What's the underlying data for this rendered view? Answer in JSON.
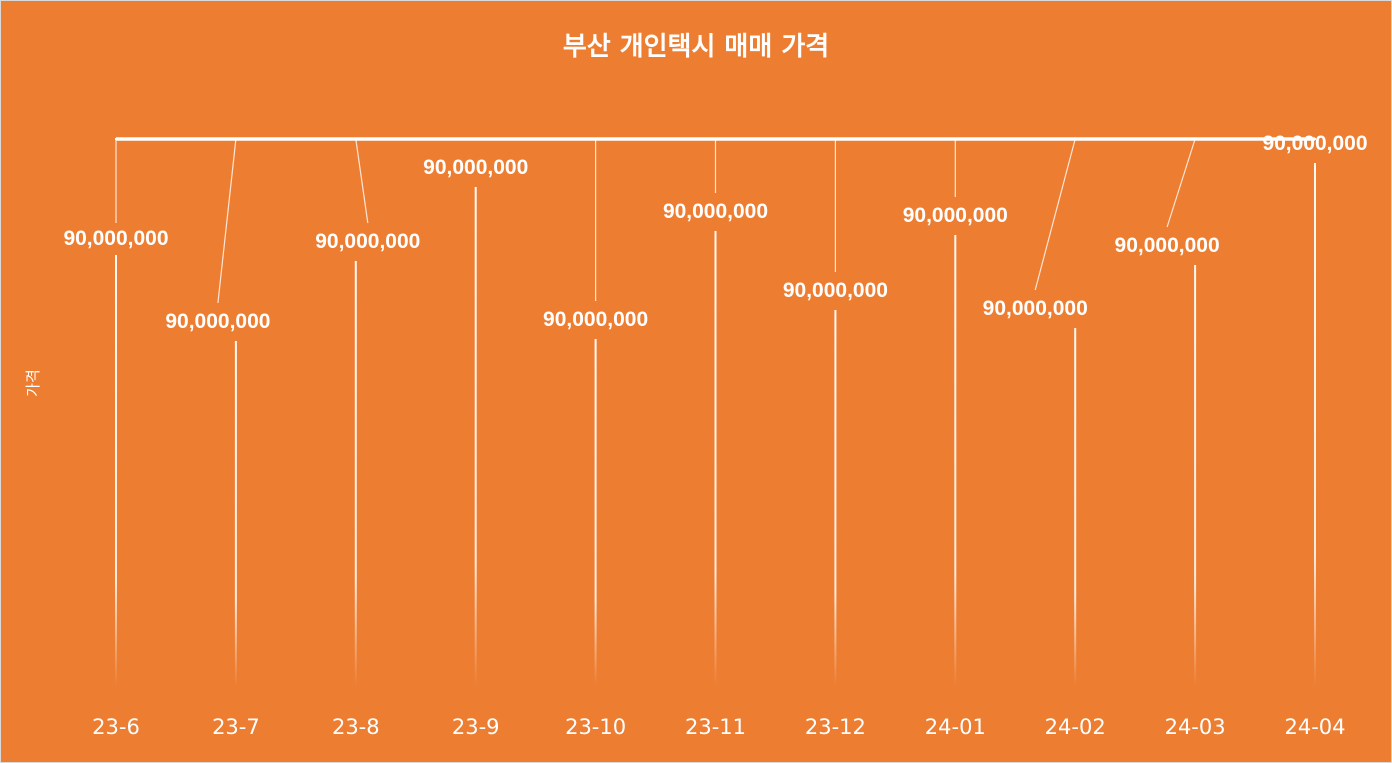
{
  "chart_data": {
    "type": "line",
    "title": "부산 개인택시 매매 가격",
    "xlabel": "",
    "ylabel": "가격",
    "categories": [
      "23-6",
      "23-7",
      "23-8",
      "23-9",
      "23-10",
      "23-11",
      "23-12",
      "24-01",
      "24-02",
      "24-03",
      "24-04"
    ],
    "series": [
      {
        "values": [
          90000000,
          90000000,
          90000000,
          90000000,
          90000000,
          90000000,
          90000000,
          90000000,
          90000000,
          90000000,
          90000000
        ],
        "data_labels": [
          "90,000,000",
          "90,000,000",
          "90,000,000",
          "90,000,000",
          "90,000,000",
          "90,000,000",
          "90,000,000",
          "90,000,000",
          "90,000,000",
          "90,000,000",
          "90,000,000"
        ]
      }
    ],
    "grid": false,
    "drop_lines": true,
    "legend": "none",
    "colors": {
      "background": "#ED7D31",
      "line": "#FFFFFF",
      "text": "#FFFFFF"
    }
  }
}
